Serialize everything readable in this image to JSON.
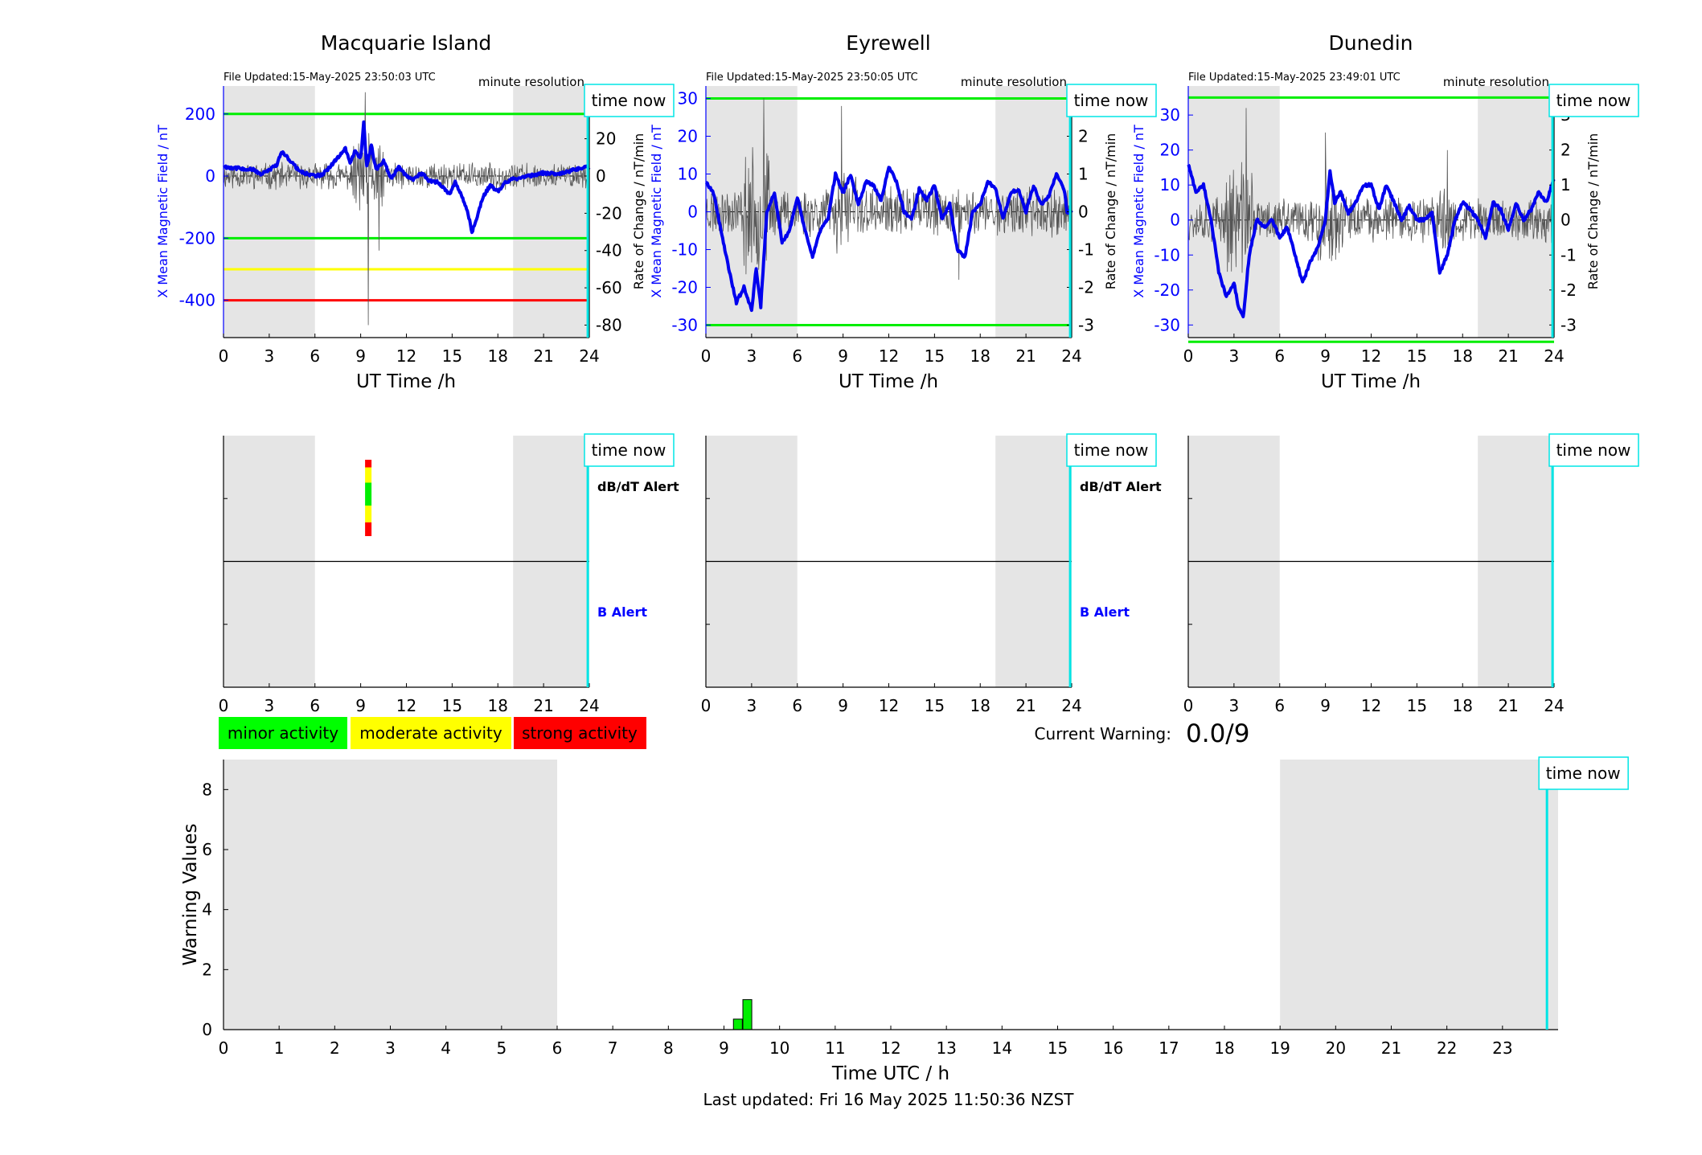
{
  "page": {
    "footer": "Last updated: Fri 16 May 2025 11:50:36 NZST"
  },
  "common": {
    "x_label": "UT Time /h",
    "x_ticks": [
      0,
      3,
      6,
      9,
      12,
      15,
      18,
      21,
      24
    ],
    "night_shading_hours": [
      [
        0,
        6
      ],
      [
        19,
        24
      ]
    ],
    "time_now_label": "time now",
    "time_now_hour": 23.9,
    "resolution_label": "minute resolution",
    "left_axis_label": "X Mean Magnetic Field / nT",
    "right_axis_label": "Rate of Change / nT/min",
    "dbdt_alert_label": "dB/dT Alert",
    "b_alert_label": "B Alert"
  },
  "stations": [
    {
      "name": "Macquarie Island",
      "file_updated": "File Updated:15-May-2025 23:50:03 UTC",
      "left_ylim": [
        -520,
        290
      ],
      "left_ticks": [
        200,
        0,
        -200,
        -400
      ],
      "right_ylim": [
        -86.7,
        48.3
      ],
      "right_ticks": [
        40,
        20,
        0,
        -20,
        -40,
        -60,
        -80
      ],
      "thresholds": [
        {
          "value": 200,
          "color": "#00ee00"
        },
        {
          "value": -200,
          "color": "#00ee00"
        },
        {
          "value": -300,
          "color": "#ffff00"
        },
        {
          "value": -400,
          "color": "#ff0000"
        }
      ],
      "field_series": [
        [
          0,
          30
        ],
        [
          1,
          25
        ],
        [
          2,
          20
        ],
        [
          2.5,
          5
        ],
        [
          3,
          20
        ],
        [
          3.5,
          35
        ],
        [
          3.8,
          80
        ],
        [
          4.2,
          60
        ],
        [
          5,
          15
        ],
        [
          6,
          0
        ],
        [
          6.5,
          5
        ],
        [
          7,
          30
        ],
        [
          7.5,
          60
        ],
        [
          8,
          90
        ],
        [
          8.3,
          40
        ],
        [
          8.6,
          80
        ],
        [
          9,
          60
        ],
        [
          9.2,
          170
        ],
        [
          9.4,
          30
        ],
        [
          9.7,
          100
        ],
        [
          10,
          20
        ],
        [
          10.5,
          50
        ],
        [
          11,
          -10
        ],
        [
          11.5,
          30
        ],
        [
          12,
          0
        ],
        [
          12.5,
          -10
        ],
        [
          13,
          10
        ],
        [
          13.5,
          -15
        ],
        [
          14,
          -20
        ],
        [
          14.5,
          -40
        ],
        [
          14.8,
          -60
        ],
        [
          15.2,
          -20
        ],
        [
          15.6,
          -60
        ],
        [
          16,
          -110
        ],
        [
          16.3,
          -180
        ],
        [
          16.6,
          -140
        ],
        [
          17,
          -70
        ],
        [
          17.5,
          -30
        ],
        [
          18,
          -50
        ],
        [
          18.5,
          -20
        ],
        [
          19,
          -10
        ],
        [
          20,
          0
        ],
        [
          21,
          10
        ],
        [
          22,
          5
        ],
        [
          23,
          20
        ],
        [
          24,
          30
        ]
      ],
      "rate_seed": 11,
      "rate_amp": 6,
      "rate_storm": [
        [
          8.5,
          10.5,
          3.2
        ]
      ],
      "rate_spikes": [
        [
          9.3,
          45
        ],
        [
          9.5,
          -80
        ],
        [
          10.2,
          -40
        ]
      ],
      "alert_bar": {
        "hour": 9.5,
        "segments": [
          {
            "from": 0,
            "to": 0.1,
            "color": "#ff0000"
          },
          {
            "from": 0.1,
            "to": 0.3,
            "color": "#ffff00"
          },
          {
            "from": 0.3,
            "to": 0.6,
            "color": "#00ee00"
          },
          {
            "from": 0.6,
            "to": 0.82,
            "color": "#ffff00"
          },
          {
            "from": 0.82,
            "to": 1,
            "color": "#ff0000"
          }
        ]
      }
    },
    {
      "name": "Eyrewell",
      "file_updated": "File Updated:15-May-2025 23:50:05 UTC",
      "left_ylim": [
        -33.3,
        33.3
      ],
      "left_ticks": [
        30,
        20,
        10,
        0,
        -10,
        -20,
        -30
      ],
      "right_ylim": [
        -3.33,
        3.33
      ],
      "right_ticks": [
        3,
        2,
        1,
        0,
        -1,
        -2,
        -3
      ],
      "thresholds": [
        {
          "value": 30,
          "color": "#00ee00"
        },
        {
          "value": -30,
          "color": "#00ee00"
        }
      ],
      "field_series": [
        [
          0,
          8
        ],
        [
          0.5,
          5
        ],
        [
          1,
          -5
        ],
        [
          1.5,
          -15
        ],
        [
          2,
          -24
        ],
        [
          2.5,
          -20
        ],
        [
          3,
          -26
        ],
        [
          3.3,
          -15
        ],
        [
          3.6,
          -25
        ],
        [
          4,
          0
        ],
        [
          4.5,
          5
        ],
        [
          5,
          -8
        ],
        [
          5.5,
          -5
        ],
        [
          6,
          4
        ],
        [
          6.5,
          -5
        ],
        [
          7,
          -12
        ],
        [
          7.5,
          -5
        ],
        [
          8,
          -2
        ],
        [
          8.5,
          10
        ],
        [
          9,
          5
        ],
        [
          9.5,
          10
        ],
        [
          10,
          2
        ],
        [
          10.5,
          8
        ],
        [
          11,
          7
        ],
        [
          11.5,
          3
        ],
        [
          12,
          12
        ],
        [
          12.5,
          8
        ],
        [
          13,
          0
        ],
        [
          13.5,
          -2
        ],
        [
          14,
          6
        ],
        [
          14.5,
          3
        ],
        [
          15,
          7
        ],
        [
          15.5,
          -2
        ],
        [
          16,
          2
        ],
        [
          16.5,
          -10
        ],
        [
          17,
          -12
        ],
        [
          17.5,
          0
        ],
        [
          18,
          2
        ],
        [
          18.5,
          8
        ],
        [
          19,
          6
        ],
        [
          19.5,
          -2
        ],
        [
          20,
          5
        ],
        [
          20.5,
          6
        ],
        [
          21,
          0
        ],
        [
          21.5,
          7
        ],
        [
          22,
          2
        ],
        [
          22.5,
          4
        ],
        [
          23,
          10
        ],
        [
          23.5,
          6
        ],
        [
          23.7,
          0
        ],
        [
          24,
          0
        ]
      ],
      "rate_seed": 23,
      "rate_amp": 0.55,
      "rate_storm": [
        [
          2.5,
          4.2,
          2.5
        ],
        [
          8.5,
          10,
          1.8
        ]
      ],
      "rate_spikes": [
        [
          3.8,
          3.0
        ],
        [
          8.9,
          2.8
        ],
        [
          16.6,
          -1.8
        ]
      ],
      "alert_bar": null
    },
    {
      "name": "Dunedin",
      "file_updated": "File Updated:15-May-2025 23:49:01 UTC",
      "left_ylim": [
        -33.6,
        38.3
      ],
      "left_ticks": [
        30,
        20,
        10,
        0,
        -10,
        -20,
        -30
      ],
      "right_ylim": [
        -3.36,
        3.83
      ],
      "right_ticks": [
        3,
        2,
        1,
        0,
        -1,
        -2,
        -3
      ],
      "thresholds": [
        {
          "value": 35,
          "color": "#00ee00"
        },
        {
          "value": -34.8,
          "color": "#00ee00"
        }
      ],
      "field_series": [
        [
          0,
          16
        ],
        [
          0.5,
          8
        ],
        [
          1,
          10
        ],
        [
          1.5,
          0
        ],
        [
          2,
          -15
        ],
        [
          2.5,
          -22
        ],
        [
          3,
          -18
        ],
        [
          3.3,
          -25
        ],
        [
          3.6,
          -28
        ],
        [
          4,
          -10
        ],
        [
          4.5,
          0
        ],
        [
          5,
          -2
        ],
        [
          5.5,
          0
        ],
        [
          6,
          -5
        ],
        [
          6.5,
          -2
        ],
        [
          7,
          -10
        ],
        [
          7.5,
          -18
        ],
        [
          8,
          -12
        ],
        [
          8.5,
          -8
        ],
        [
          9,
          0
        ],
        [
          9.3,
          14
        ],
        [
          9.6,
          5
        ],
        [
          10,
          8
        ],
        [
          10.5,
          2
        ],
        [
          11,
          5
        ],
        [
          11.5,
          10
        ],
        [
          12,
          10
        ],
        [
          12.5,
          3
        ],
        [
          13,
          10
        ],
        [
          13.5,
          5
        ],
        [
          14,
          0
        ],
        [
          14.5,
          4
        ],
        [
          15,
          0
        ],
        [
          15.5,
          0
        ],
        [
          16,
          2
        ],
        [
          16.5,
          -15
        ],
        [
          17,
          -10
        ],
        [
          17.5,
          0
        ],
        [
          18,
          5
        ],
        [
          18.5,
          3
        ],
        [
          19,
          0
        ],
        [
          19.5,
          -5
        ],
        [
          20,
          5
        ],
        [
          20.5,
          3
        ],
        [
          21,
          -3
        ],
        [
          21.5,
          5
        ],
        [
          22,
          0
        ],
        [
          22.5,
          3
        ],
        [
          23,
          8
        ],
        [
          23.5,
          5
        ],
        [
          24,
          12
        ]
      ],
      "rate_seed": 37,
      "rate_amp": 0.55,
      "rate_storm": [
        [
          2.5,
          4.2,
          2.5
        ],
        [
          8.5,
          10.2,
          1.8
        ],
        [
          16.5,
          17.3,
          1.6
        ]
      ],
      "rate_spikes": [
        [
          3.8,
          3.2
        ],
        [
          9.0,
          2.5
        ],
        [
          17.0,
          2.0
        ]
      ],
      "alert_bar": null
    }
  ],
  "legend": [
    {
      "label": "minor activity",
      "color": "#00ff00"
    },
    {
      "label": "moderate activity",
      "color": "#ffff00"
    },
    {
      "label": "strong activity",
      "color": "#ff0000"
    }
  ],
  "current_warning": {
    "label": "Current Warning:",
    "value": "0.0/9"
  },
  "chart_data": {
    "type": "bar",
    "ylabel": "Warning Values",
    "xlabel": "Time UTC / h",
    "xlim": [
      0,
      24
    ],
    "ylim": [
      0,
      9
    ],
    "x_ticks": [
      0,
      1,
      2,
      3,
      4,
      5,
      6,
      7,
      8,
      9,
      10,
      11,
      12,
      13,
      14,
      15,
      16,
      17,
      18,
      19,
      20,
      21,
      22,
      23
    ],
    "y_ticks": [
      0,
      2,
      4,
      6,
      8
    ],
    "bars": [
      {
        "x": 9.25,
        "value": 0.35
      },
      {
        "x": 9.42,
        "value": 1
      }
    ],
    "bar_color": "#00ee00",
    "time_now_hour": 23.8
  }
}
